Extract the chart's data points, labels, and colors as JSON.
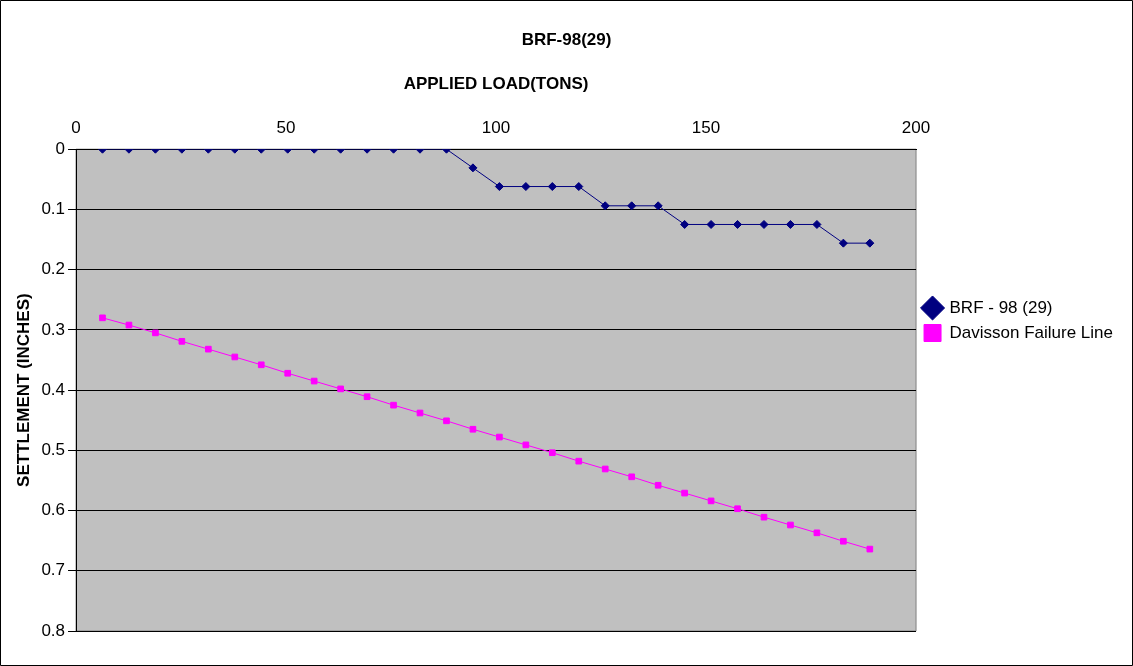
{
  "chart_data": {
    "type": "line",
    "title": "BRF-98(29)",
    "xlabel": "APPLIED LOAD(TONS)",
    "ylabel": "SETTLEMENT (INCHES)",
    "xlim": [
      0,
      200
    ],
    "xticks": [
      0,
      50,
      100,
      150,
      200
    ],
    "ylim": [
      0.8,
      0
    ],
    "yticks": [
      0,
      0.1,
      0.2,
      0.3,
      0.4,
      0.5,
      0.6,
      0.7,
      0.8
    ],
    "grid": "y",
    "legend": "right",
    "x": [
      6.3,
      12.6,
      18.9,
      25.2,
      31.5,
      37.8,
      44.1,
      50.4,
      56.7,
      63,
      69.3,
      75.6,
      81.9,
      88.2,
      94.5,
      100.8,
      107.1,
      113.4,
      119.7,
      126,
      132.3,
      138.6,
      144.9,
      151.2,
      157.5,
      163.8,
      170.1,
      176.4,
      182.7,
      189
    ],
    "series": [
      {
        "name": "BRF - 98 (29)",
        "color": "#000080",
        "marker": "diamond",
        "values": [
          0,
          0,
          0,
          0,
          0,
          0,
          0,
          0,
          0,
          0,
          0,
          0,
          0,
          0,
          0.031,
          0.062,
          0.062,
          0.062,
          0.062,
          0.094,
          0.094,
          0.094,
          0.125,
          0.125,
          0.125,
          0.125,
          0.125,
          0.125,
          0.156,
          0.156
        ]
      },
      {
        "name": "Davisson Failure Line",
        "color": "#ff00ff",
        "marker": "square",
        "values": [
          0.28,
          0.292,
          0.305,
          0.319,
          0.332,
          0.345,
          0.358,
          0.372,
          0.385,
          0.398,
          0.411,
          0.425,
          0.438,
          0.451,
          0.465,
          0.478,
          0.491,
          0.504,
          0.518,
          0.531,
          0.544,
          0.558,
          0.571,
          0.584,
          0.597,
          0.611,
          0.624,
          0.637,
          0.651,
          0.664
        ]
      }
    ]
  }
}
